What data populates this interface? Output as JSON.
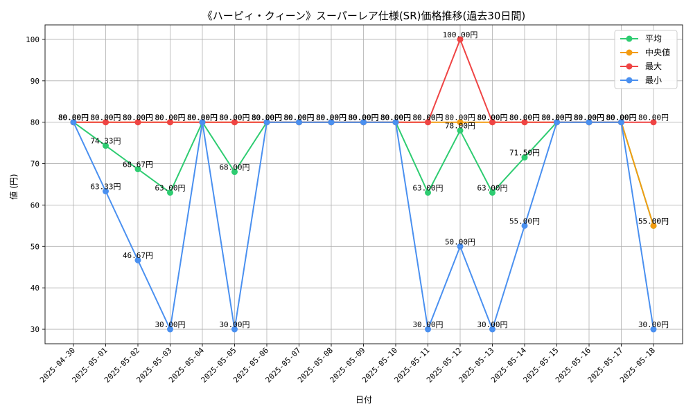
{
  "chart_data": {
    "type": "line",
    "title": "《ハーピィ・クィーン》スーパーレア仕様(SR)価格推移(過去30日間)",
    "xlabel": "日付",
    "ylabel": "値 (円)",
    "value_suffix": "円",
    "ylim": [
      26.5,
      103.5
    ],
    "yticks": [
      30,
      40,
      50,
      60,
      70,
      80,
      90,
      100
    ],
    "grid": true,
    "legend_position": "top-right",
    "categories": [
      "2025-04-30",
      "2025-05-01",
      "2025-05-02",
      "2025-05-03",
      "2025-05-04",
      "2025-05-05",
      "2025-05-06",
      "2025-05-07",
      "2025-05-08",
      "2025-05-09",
      "2025-05-10",
      "2025-05-11",
      "2025-05-12",
      "2025-05-13",
      "2025-05-14",
      "2025-05-15",
      "2025-05-16",
      "2025-05-17",
      "2025-05-18"
    ],
    "series": [
      {
        "name": "平均",
        "color": "#2ecc71",
        "values": [
          80,
          74.33,
          68.67,
          63,
          80,
          68,
          80,
          80,
          80,
          80,
          80,
          63,
          78,
          63,
          71.5,
          80,
          80,
          80,
          55
        ]
      },
      {
        "name": "中央値",
        "color": "#f39c12",
        "values": [
          80,
          80,
          80,
          80,
          80,
          80,
          80,
          80,
          80,
          80,
          80,
          80,
          80,
          80,
          80,
          80,
          80,
          80,
          55
        ]
      },
      {
        "name": "最大",
        "color": "#ef4444",
        "values": [
          80,
          80,
          80,
          80,
          80,
          80,
          80,
          80,
          80,
          80,
          80,
          80,
          100,
          80,
          80,
          80,
          80,
          80,
          80
        ]
      },
      {
        "name": "最小",
        "color": "#4a90f0",
        "values": [
          80,
          63.33,
          46.67,
          30,
          80,
          30,
          80,
          80,
          80,
          80,
          80,
          30,
          50,
          30,
          55,
          80,
          80,
          80,
          30
        ]
      }
    ]
  }
}
